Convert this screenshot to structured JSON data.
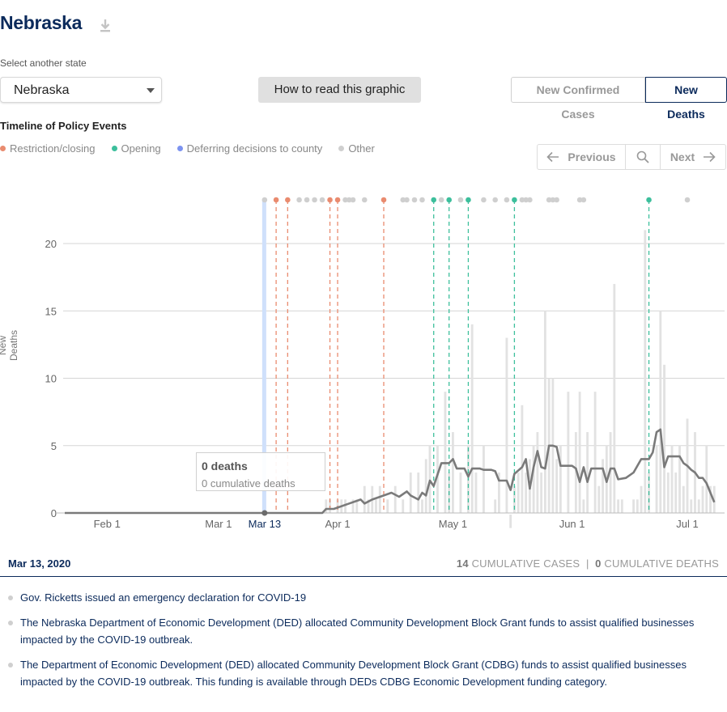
{
  "header": {
    "title": "Nebraska",
    "download_icon": "download-icon"
  },
  "state_select": {
    "label": "Select another state",
    "value": "Nebraska"
  },
  "howto_button": "How to read this graphic",
  "toggle": {
    "cases": "New Confirmed Cases",
    "deaths": "New Deaths",
    "active": "deaths"
  },
  "timeline": {
    "title": "Timeline of Policy Events",
    "legend": [
      {
        "label": "Restriction/closing",
        "color": "#e98b6f"
      },
      {
        "label": "Opening",
        "color": "#3dbf9c"
      },
      {
        "label": "Deferring decisions to county",
        "color": "#7c93f0"
      },
      {
        "label": "Other",
        "color": "#cfcfcf"
      }
    ],
    "pager": {
      "previous": "Previous",
      "next": "Next",
      "search_icon": "search-icon"
    }
  },
  "chart_data": {
    "type": "bar",
    "ylabel": "New Deaths",
    "ylim": [
      0,
      23
    ],
    "yticks": [
      0,
      5,
      10,
      15,
      20
    ],
    "xticks": [
      {
        "label": "Feb 1",
        "day": 0
      },
      {
        "label": "Mar 1",
        "day": 29
      },
      {
        "label": "Mar 13",
        "day": 41,
        "highlight": true
      },
      {
        "label": "Apr 1",
        "day": 60
      },
      {
        "label": "May 1",
        "day": 90
      },
      {
        "label": "Jun 1",
        "day": 121
      },
      {
        "label": "Jul 1",
        "day": 151
      }
    ],
    "x_start": "2020-01-21",
    "x_end": "2020-07-08",
    "daily_deaths": [
      {
        "d": "2020-03-29",
        "v": 1
      },
      {
        "d": "2020-03-30",
        "v": 1
      },
      {
        "d": "2020-04-01",
        "v": 1
      },
      {
        "d": "2020-04-02",
        "v": 1
      },
      {
        "d": "2020-04-03",
        "v": 1
      },
      {
        "d": "2020-04-05",
        "v": 1
      },
      {
        "d": "2020-04-06",
        "v": 1
      },
      {
        "d": "2020-04-08",
        "v": 2
      },
      {
        "d": "2020-04-09",
        "v": 1
      },
      {
        "d": "2020-04-10",
        "v": 2
      },
      {
        "d": "2020-04-11",
        "v": 1
      },
      {
        "d": "2020-04-12",
        "v": 2
      },
      {
        "d": "2020-04-14",
        "v": 1
      },
      {
        "d": "2020-04-16",
        "v": 2
      },
      {
        "d": "2020-04-18",
        "v": 1
      },
      {
        "d": "2020-04-20",
        "v": 3
      },
      {
        "d": "2020-04-22",
        "v": 3
      },
      {
        "d": "2020-04-23",
        "v": 1
      },
      {
        "d": "2020-04-24",
        "v": 4
      },
      {
        "d": "2020-04-25",
        "v": 5
      },
      {
        "d": "2020-04-27",
        "v": 5
      },
      {
        "d": "2020-04-29",
        "v": 9
      },
      {
        "d": "2020-04-30",
        "v": 3
      },
      {
        "d": "2020-05-01",
        "v": 6
      },
      {
        "d": "2020-05-03",
        "v": 3
      },
      {
        "d": "2020-05-05",
        "v": 5
      },
      {
        "d": "2020-05-06",
        "v": 14
      },
      {
        "d": "2020-05-07",
        "v": 3
      },
      {
        "d": "2020-05-09",
        "v": 5
      },
      {
        "d": "2020-05-12",
        "v": 1
      },
      {
        "d": "2020-05-13",
        "v": 3
      },
      {
        "d": "2020-05-15",
        "v": 13
      },
      {
        "d": "2020-05-16",
        "v": -1
      },
      {
        "d": "2020-05-17",
        "v": 2
      },
      {
        "d": "2020-05-18",
        "v": 3
      },
      {
        "d": "2020-05-19",
        "v": 8
      },
      {
        "d": "2020-05-20",
        "v": 3
      },
      {
        "d": "2020-05-21",
        "v": 4
      },
      {
        "d": "2020-05-22",
        "v": 5
      },
      {
        "d": "2020-05-23",
        "v": 6
      },
      {
        "d": "2020-05-24",
        "v": 3
      },
      {
        "d": "2020-05-25",
        "v": 15
      },
      {
        "d": "2020-05-26",
        "v": 10
      },
      {
        "d": "2020-05-27",
        "v": 10
      },
      {
        "d": "2020-05-28",
        "v": 4
      },
      {
        "d": "2020-05-29",
        "v": 5
      },
      {
        "d": "2020-05-31",
        "v": 9
      },
      {
        "d": "2020-06-02",
        "v": 6
      },
      {
        "d": "2020-06-03",
        "v": 9
      },
      {
        "d": "2020-06-04",
        "v": 1
      },
      {
        "d": "2020-06-05",
        "v": 6
      },
      {
        "d": "2020-06-07",
        "v": 9
      },
      {
        "d": "2020-06-08",
        "v": 2
      },
      {
        "d": "2020-06-09",
        "v": 4
      },
      {
        "d": "2020-06-10",
        "v": 5
      },
      {
        "d": "2020-06-11",
        "v": 6
      },
      {
        "d": "2020-06-12",
        "v": 17
      },
      {
        "d": "2020-06-13",
        "v": 1
      },
      {
        "d": "2020-06-14",
        "v": 1
      },
      {
        "d": "2020-06-17",
        "v": 1
      },
      {
        "d": "2020-06-18",
        "v": 1
      },
      {
        "d": "2020-06-19",
        "v": 2
      },
      {
        "d": "2020-06-20",
        "v": 21
      },
      {
        "d": "2020-06-21",
        "v": 3
      },
      {
        "d": "2020-06-23",
        "v": 5
      },
      {
        "d": "2020-06-24",
        "v": 15
      },
      {
        "d": "2020-06-25",
        "v": 11
      },
      {
        "d": "2020-06-26",
        "v": 3
      },
      {
        "d": "2020-06-27",
        "v": 5
      },
      {
        "d": "2020-06-28",
        "v": 3
      },
      {
        "d": "2020-06-29",
        "v": 5
      },
      {
        "d": "2020-06-30",
        "v": 2
      },
      {
        "d": "2020-07-01",
        "v": 7
      },
      {
        "d": "2020-07-02",
        "v": 1
      },
      {
        "d": "2020-07-03",
        "v": 6
      },
      {
        "d": "2020-07-04",
        "v": 1
      },
      {
        "d": "2020-07-05",
        "v": 2
      },
      {
        "d": "2020-07-06",
        "v": 5
      },
      {
        "d": "2020-07-07",
        "v": 2
      },
      {
        "d": "2020-07-08",
        "v": 2
      }
    ],
    "average_line": [
      {
        "d": "2020-01-21",
        "v": 0
      },
      {
        "d": "2020-03-13",
        "v": 0
      },
      {
        "d": "2020-03-28",
        "v": 0
      },
      {
        "d": "2020-03-29",
        "v": 0.3
      },
      {
        "d": "2020-03-31",
        "v": 0.3
      },
      {
        "d": "2020-04-04",
        "v": 0.7
      },
      {
        "d": "2020-04-07",
        "v": 1.0
      },
      {
        "d": "2020-04-08",
        "v": 0.7
      },
      {
        "d": "2020-04-10",
        "v": 1.0
      },
      {
        "d": "2020-04-13",
        "v": 1.3
      },
      {
        "d": "2020-04-15",
        "v": 1.5
      },
      {
        "d": "2020-04-17",
        "v": 1.2
      },
      {
        "d": "2020-04-19",
        "v": 1.6
      },
      {
        "d": "2020-04-20",
        "v": 1.3
      },
      {
        "d": "2020-04-22",
        "v": 1.0
      },
      {
        "d": "2020-04-23",
        "v": 1.5
      },
      {
        "d": "2020-04-24",
        "v": 1.3
      },
      {
        "d": "2020-04-25",
        "v": 2.4
      },
      {
        "d": "2020-04-26",
        "v": 2.0
      },
      {
        "d": "2020-04-28",
        "v": 3.7
      },
      {
        "d": "2020-04-30",
        "v": 3.7
      },
      {
        "d": "2020-05-01",
        "v": 4.0
      },
      {
        "d": "2020-05-02",
        "v": 3.3
      },
      {
        "d": "2020-05-04",
        "v": 3.3
      },
      {
        "d": "2020-05-05",
        "v": 2.7
      },
      {
        "d": "2020-05-06",
        "v": 3.3
      },
      {
        "d": "2020-05-08",
        "v": 3.3
      },
      {
        "d": "2020-05-09",
        "v": 3.2
      },
      {
        "d": "2020-05-11",
        "v": 3.2
      },
      {
        "d": "2020-05-12",
        "v": 3.1
      },
      {
        "d": "2020-05-13",
        "v": 2.4
      },
      {
        "d": "2020-05-15",
        "v": 2.4
      },
      {
        "d": "2020-05-16",
        "v": 1.7
      },
      {
        "d": "2020-05-17",
        "v": 2.9
      },
      {
        "d": "2020-05-19",
        "v": 3.4
      },
      {
        "d": "2020-05-20",
        "v": 4.0
      },
      {
        "d": "2020-05-21",
        "v": 1.8
      },
      {
        "d": "2020-05-22",
        "v": 3.4
      },
      {
        "d": "2020-05-23",
        "v": 4.6
      },
      {
        "d": "2020-05-24",
        "v": 3.4
      },
      {
        "d": "2020-05-25",
        "v": 3.3
      },
      {
        "d": "2020-05-26",
        "v": 5.0
      },
      {
        "d": "2020-05-27",
        "v": 5.0
      },
      {
        "d": "2020-05-28",
        "v": 4.9
      },
      {
        "d": "2020-05-29",
        "v": 3.5
      },
      {
        "d": "2020-06-01",
        "v": 3.5
      },
      {
        "d": "2020-06-02",
        "v": 3.3
      },
      {
        "d": "2020-06-03",
        "v": 2.3
      },
      {
        "d": "2020-06-04",
        "v": 3.4
      },
      {
        "d": "2020-06-05",
        "v": 2.3
      },
      {
        "d": "2020-06-06",
        "v": 3.3
      },
      {
        "d": "2020-06-09",
        "v": 3.3
      },
      {
        "d": "2020-06-10",
        "v": 2.3
      },
      {
        "d": "2020-06-11",
        "v": 3.3
      },
      {
        "d": "2020-06-12",
        "v": 3.3
      },
      {
        "d": "2020-06-13",
        "v": 2.5
      },
      {
        "d": "2020-06-15",
        "v": 2.6
      },
      {
        "d": "2020-06-17",
        "v": 3.0
      },
      {
        "d": "2020-06-19",
        "v": 4.0
      },
      {
        "d": "2020-06-21",
        "v": 4.0
      },
      {
        "d": "2020-06-22",
        "v": 4.5
      },
      {
        "d": "2020-06-23",
        "v": 6.0
      },
      {
        "d": "2020-06-24",
        "v": 6.2
      },
      {
        "d": "2020-06-25",
        "v": 3.4
      },
      {
        "d": "2020-06-26",
        "v": 4.2
      },
      {
        "d": "2020-06-29",
        "v": 4.2
      },
      {
        "d": "2020-06-30",
        "v": 3.7
      },
      {
        "d": "2020-07-01",
        "v": 3.5
      },
      {
        "d": "2020-07-02",
        "v": 3.2
      },
      {
        "d": "2020-07-03",
        "v": 3.0
      },
      {
        "d": "2020-07-04",
        "v": 2.6
      },
      {
        "d": "2020-07-05",
        "v": 2.6
      },
      {
        "d": "2020-07-06",
        "v": 2.2
      },
      {
        "d": "2020-07-07",
        "v": 1.5
      },
      {
        "d": "2020-07-08",
        "v": 0.8
      }
    ],
    "policy_events": [
      {
        "d": "2020-03-13",
        "type": "other",
        "line": true,
        "selected": true
      },
      {
        "d": "2020-03-16",
        "type": "restriction",
        "line": true
      },
      {
        "d": "2020-03-19",
        "type": "restriction",
        "line": true
      },
      {
        "d": "2020-03-22",
        "type": "other"
      },
      {
        "d": "2020-03-24",
        "type": "other"
      },
      {
        "d": "2020-03-26",
        "type": "other"
      },
      {
        "d": "2020-03-28",
        "type": "other"
      },
      {
        "d": "2020-03-30",
        "type": "restriction",
        "line": true
      },
      {
        "d": "2020-04-01",
        "type": "restriction",
        "line": true
      },
      {
        "d": "2020-04-03",
        "type": "other"
      },
      {
        "d": "2020-04-04",
        "type": "other"
      },
      {
        "d": "2020-04-05",
        "type": "other"
      },
      {
        "d": "2020-04-08",
        "type": "other"
      },
      {
        "d": "2020-04-13",
        "type": "restriction",
        "line": true
      },
      {
        "d": "2020-04-18",
        "type": "other"
      },
      {
        "d": "2020-04-19",
        "type": "other"
      },
      {
        "d": "2020-04-21",
        "type": "other"
      },
      {
        "d": "2020-04-23",
        "type": "other"
      },
      {
        "d": "2020-04-26",
        "type": "opening",
        "line": true
      },
      {
        "d": "2020-04-28",
        "type": "other"
      },
      {
        "d": "2020-04-30",
        "type": "opening",
        "line": true
      },
      {
        "d": "2020-05-03",
        "type": "other"
      },
      {
        "d": "2020-05-05",
        "type": "opening",
        "line": true
      },
      {
        "d": "2020-05-09",
        "type": "other"
      },
      {
        "d": "2020-05-12",
        "type": "other"
      },
      {
        "d": "2020-05-15",
        "type": "other"
      },
      {
        "d": "2020-05-17",
        "type": "opening",
        "line": true
      },
      {
        "d": "2020-05-19",
        "type": "other"
      },
      {
        "d": "2020-05-20",
        "type": "other"
      },
      {
        "d": "2020-05-21",
        "type": "other"
      },
      {
        "d": "2020-05-26",
        "type": "other"
      },
      {
        "d": "2020-05-27",
        "type": "other"
      },
      {
        "d": "2020-05-28",
        "type": "other"
      },
      {
        "d": "2020-06-03",
        "type": "other"
      },
      {
        "d": "2020-06-04",
        "type": "other"
      },
      {
        "d": "2020-06-21",
        "type": "opening",
        "line": true
      },
      {
        "d": "2020-07-01",
        "type": "other"
      }
    ],
    "type_colors": {
      "restriction": "#e98b6f",
      "opening": "#3dbf9c",
      "deferring": "#7c93f0",
      "other": "#cfcfcf"
    },
    "grid": true
  },
  "tooltip": {
    "title": "0 deaths",
    "subtitle": "0 cumulative deaths"
  },
  "selected": {
    "date": "Mar 13, 2020",
    "cum_cases_num": "14",
    "cum_cases_label": "CUMULATIVE CASES",
    "separator": "|",
    "cum_deaths_num": "0",
    "cum_deaths_label": "CUMULATIVE DEATHS"
  },
  "events": [
    "Gov. Ricketts issued an emergency declaration for COVID-19",
    "The Nebraska Department of Economic Development (DED) allocated Community Development Block Grant funds to assist qualified businesses impacted by the COVID-19 outbreak.",
    "The Department of Economic Development (DED) allocated Community Development Block Grant (CDBG) funds to assist qualified businesses impacted by the COVID-19 outbreak. This funding is available through DEDs CDBG Economic Development funding category."
  ]
}
